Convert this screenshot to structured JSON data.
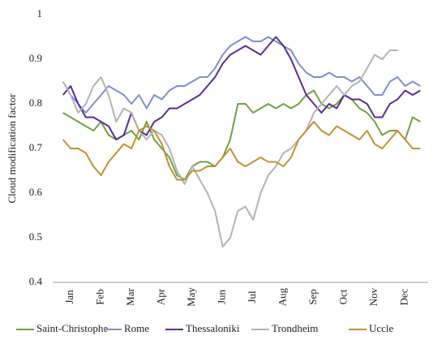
{
  "chart_data": {
    "type": "line",
    "ylabel": "Cloud modification factor",
    "categories": [
      null,
      "Jan",
      null,
      null,
      null,
      "Feb",
      null,
      null,
      null,
      "Mar",
      null,
      null,
      null,
      "Apr",
      null,
      null,
      null,
      "May",
      null,
      null,
      null,
      "Jun",
      null,
      null,
      null,
      "Jul",
      null,
      null,
      null,
      "Aug",
      null,
      null,
      null,
      "Sep",
      null,
      null,
      null,
      "Oct",
      null,
      null,
      null,
      "Nov",
      null,
      null,
      null,
      "Dec",
      null,
      null
    ],
    "ylim": [
      0.4,
      1
    ],
    "yticks": [
      0.4,
      0.5,
      0.6,
      0.7,
      0.8,
      0.9,
      1
    ],
    "legend": "bottom",
    "series": [
      {
        "name": "Saint-Christophe",
        "color": "#72a043",
        "values": [
          0.78,
          0.77,
          0.76,
          0.75,
          0.74,
          0.76,
          0.73,
          0.72,
          0.73,
          0.74,
          0.72,
          0.76,
          0.72,
          0.7,
          0.68,
          0.64,
          0.63,
          0.66,
          0.67,
          0.67,
          0.66,
          0.68,
          0.72,
          0.8,
          0.8,
          0.78,
          0.79,
          0.8,
          0.79,
          0.8,
          0.79,
          0.8,
          0.82,
          0.83,
          0.8,
          0.79,
          0.8,
          0.82,
          0.81,
          0.79,
          0.78,
          0.76,
          0.73,
          0.74,
          0.74,
          0.72,
          0.77,
          0.76
        ]
      },
      {
        "name": "Rome",
        "color": "#7f8fcf",
        "values": [
          0.85,
          0.82,
          0.8,
          0.78,
          0.8,
          0.82,
          0.84,
          0.83,
          0.82,
          0.8,
          0.82,
          0.79,
          0.82,
          0.81,
          0.83,
          0.84,
          0.84,
          0.85,
          0.86,
          0.86,
          0.88,
          0.91,
          0.93,
          0.94,
          0.95,
          0.94,
          0.94,
          0.95,
          0.94,
          0.93,
          0.92,
          0.89,
          0.87,
          0.86,
          0.86,
          0.87,
          0.86,
          0.86,
          0.85,
          0.86,
          0.84,
          0.82,
          0.82,
          0.85,
          0.86,
          0.84,
          0.85,
          0.84
        ]
      },
      {
        "name": "Thessaloniki",
        "color": "#5b2d91",
        "values": [
          0.82,
          0.84,
          0.8,
          0.77,
          0.77,
          0.76,
          0.75,
          0.72,
          0.73,
          0.78,
          0.74,
          0.73,
          0.76,
          0.77,
          0.79,
          0.79,
          0.8,
          0.81,
          0.82,
          0.84,
          0.86,
          0.89,
          0.91,
          0.92,
          0.93,
          0.92,
          0.91,
          0.93,
          0.95,
          0.93,
          0.9,
          0.86,
          0.82,
          0.8,
          0.78,
          0.8,
          0.79,
          0.82,
          0.81,
          0.81,
          0.8,
          0.77,
          0.77,
          0.8,
          0.81,
          0.83,
          0.82,
          0.83
        ]
      },
      {
        "name": "Trondheim",
        "color": "#b3b3b3",
        "values": [
          0.85,
          0.82,
          0.78,
          0.8,
          0.84,
          0.86,
          0.82,
          0.76,
          0.79,
          0.78,
          0.74,
          0.72,
          0.74,
          0.73,
          0.7,
          0.65,
          0.62,
          0.66,
          0.63,
          0.6,
          0.56,
          0.48,
          0.5,
          0.56,
          0.57,
          0.54,
          0.6,
          0.64,
          0.66,
          0.69,
          0.7,
          0.72,
          0.74,
          0.78,
          0.8,
          0.82,
          0.84,
          0.82,
          0.84,
          0.85,
          0.88,
          0.91,
          0.9,
          0.92,
          0.92,
          null,
          null,
          null
        ]
      },
      {
        "name": "Uccle",
        "color": "#c09233",
        "values": [
          0.72,
          0.7,
          0.7,
          0.69,
          0.66,
          0.64,
          0.67,
          0.69,
          0.71,
          0.7,
          0.74,
          0.75,
          0.74,
          0.71,
          0.66,
          0.63,
          0.63,
          0.65,
          0.65,
          0.66,
          0.66,
          0.68,
          0.7,
          0.67,
          0.66,
          0.67,
          0.68,
          0.67,
          0.67,
          0.66,
          0.68,
          0.72,
          0.74,
          0.76,
          0.74,
          0.73,
          0.75,
          0.74,
          0.73,
          0.72,
          0.74,
          0.71,
          0.7,
          0.72,
          0.74,
          0.72,
          0.7,
          0.7
        ]
      }
    ]
  }
}
